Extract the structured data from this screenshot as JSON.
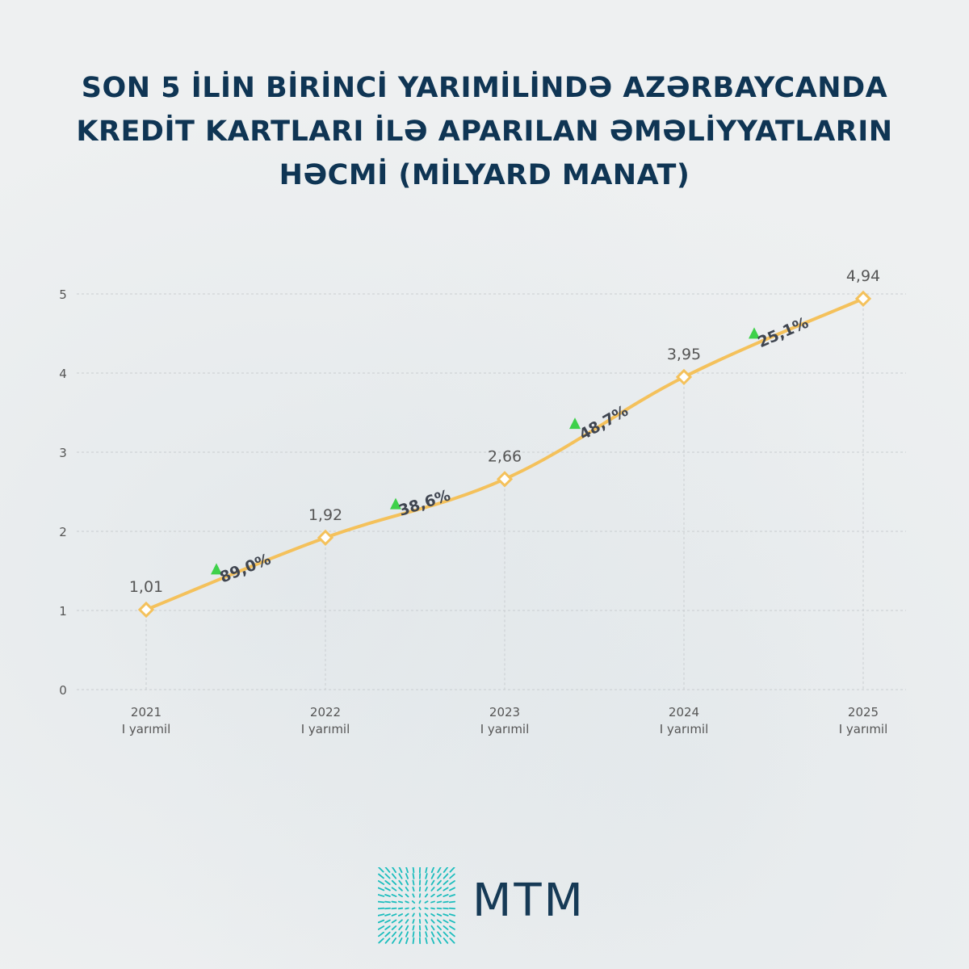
{
  "title": {
    "line1": "SON 5 İLİN BİRİNCİ YARIMİLİNDƏ AZƏRBAYCANDA",
    "line2": "KREDİT KARTLARI İLƏ APARILAN ƏMƏLİYYATLARIN",
    "line3": "HƏCMİ (MİLYARD MANAT)"
  },
  "brand": {
    "name": "MTM",
    "logo_icon": "mtm-logo-icon"
  },
  "colors": {
    "title": "#0f3554",
    "line": "#f4c15b",
    "growth_arrow": "#3ed14a",
    "label_text": "#555555",
    "growth_text": "#3f4550",
    "grid": "#c9cdd0",
    "logo": "#1bbdbd",
    "brand": "#163a56"
  },
  "chart_data": {
    "type": "line",
    "categories": [
      [
        "2021",
        "I yarımil"
      ],
      [
        "2022",
        "I yarımil"
      ],
      [
        "2023",
        "I yarımil"
      ],
      [
        "2024",
        "I yarımil"
      ],
      [
        "2025",
        "I yarımil"
      ]
    ],
    "values": [
      1.01,
      1.92,
      2.66,
      3.95,
      4.94
    ],
    "value_labels": [
      "1,01",
      "1,92",
      "2,66",
      "3,95",
      "4,94"
    ],
    "growth_labels": [
      "89,0%",
      "38,6%",
      "48,7%",
      "25,1%"
    ],
    "y_ticks": [
      "0",
      "1",
      "2",
      "3",
      "4",
      "5"
    ],
    "ylim": [
      0,
      5
    ],
    "grid": true,
    "marker": "diamond-outline"
  }
}
